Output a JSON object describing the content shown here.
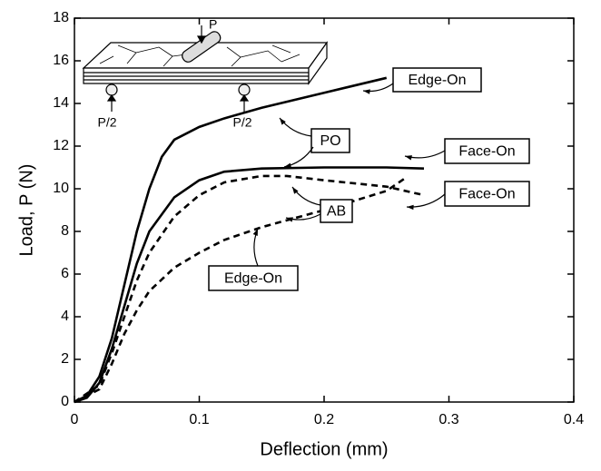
{
  "chart_data": {
    "type": "line",
    "x_label": "Deflection  (mm)",
    "y_label": "Load,  P (N)",
    "xlim": [
      0,
      0.4
    ],
    "xticks": [
      0,
      0.1,
      0.2,
      0.3,
      0.4
    ],
    "ylim": [
      0,
      18
    ],
    "yticks": [
      0,
      2,
      4,
      6,
      8,
      10,
      12,
      14,
      16,
      18
    ],
    "series": [
      {
        "color": "#000000",
        "line_style": "solid",
        "x": [
          0,
          0.01,
          0.02,
          0.03,
          0.04,
          0.05,
          0.06,
          0.07,
          0.08,
          0.1,
          0.12,
          0.15,
          0.2,
          0.25
        ],
        "values": [
          0,
          0.3,
          1.2,
          3,
          5.5,
          8,
          10,
          11.5,
          12.3,
          12.9,
          13.3,
          13.8,
          14.5,
          15.2
        ]
      },
      {
        "color": "#000000",
        "line_style": "solid",
        "x": [
          0,
          0.01,
          0.02,
          0.03,
          0.04,
          0.05,
          0.06,
          0.08,
          0.1,
          0.12,
          0.15,
          0.2,
          0.25,
          0.28
        ],
        "values": [
          0,
          0.2,
          0.9,
          2.5,
          4.5,
          6.5,
          8,
          9.6,
          10.4,
          10.8,
          10.95,
          11,
          11,
          10.95
        ]
      },
      {
        "color": "#000000",
        "line_style": "dashed",
        "x": [
          0,
          0.02,
          0.03,
          0.04,
          0.05,
          0.06,
          0.08,
          0.1,
          0.12,
          0.15,
          0.17,
          0.2,
          0.25,
          0.28
        ],
        "values": [
          0,
          0.8,
          2.3,
          4,
          5.7,
          7,
          8.7,
          9.7,
          10.3,
          10.6,
          10.6,
          10.4,
          10.1,
          9.7
        ]
      },
      {
        "color": "#000000",
        "line_style": "dashed",
        "x": [
          0,
          0.02,
          0.03,
          0.04,
          0.05,
          0.06,
          0.08,
          0.1,
          0.12,
          0.15,
          0.2,
          0.25,
          0.265
        ],
        "values": [
          0,
          0.6,
          1.8,
          3.2,
          4.3,
          5.2,
          6.3,
          7,
          7.6,
          8.2,
          9,
          9.9,
          10.5
        ]
      }
    ],
    "annotations": [
      "Edge-On",
      "PO",
      "Face-On",
      "Face-On",
      "AB",
      "Edge-On"
    ],
    "inset_labels": [
      "P",
      "P/2",
      "P/2"
    ]
  }
}
